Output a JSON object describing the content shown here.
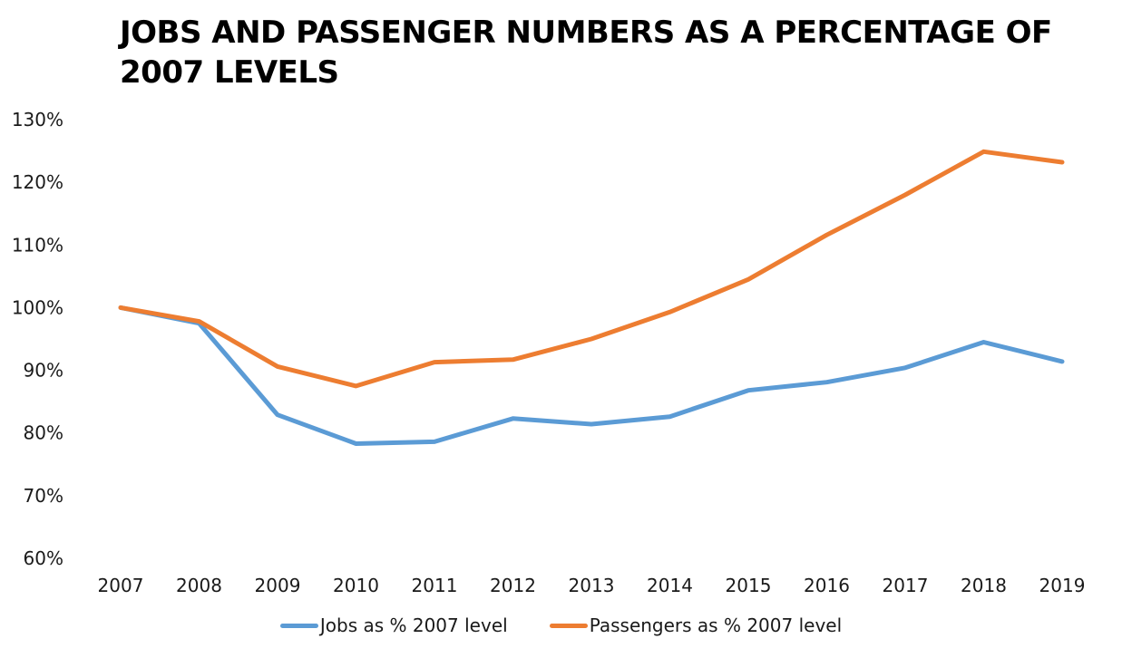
{
  "chart_data": {
    "type": "line",
    "title": "JOBS AND PASSENGER NUMBERS AS A PERCENTAGE OF 2007 LEVELS",
    "xlabel": "",
    "ylabel": "",
    "categories": [
      "2007",
      "2008",
      "2009",
      "2010",
      "2011",
      "2012",
      "2013",
      "2014",
      "2015",
      "2016",
      "2017",
      "2018",
      "2019"
    ],
    "ylim": [
      60,
      130
    ],
    "yticks": [
      60,
      70,
      80,
      90,
      100,
      110,
      120,
      130
    ],
    "ytick_labels": [
      "60%",
      "70%",
      "80%",
      "90%",
      "100%",
      "110%",
      "120%",
      "130%"
    ],
    "grid": false,
    "legend_position": "bottom",
    "series": [
      {
        "name": "Jobs as % 2007 level",
        "color": "#5B9BD5",
        "values": [
          100,
          97.5,
          82.9,
          78.3,
          78.6,
          82.3,
          81.4,
          82.6,
          86.8,
          88.1,
          90.4,
          94.5,
          91.4
        ]
      },
      {
        "name": "Passengers as % 2007 level",
        "color": "#ED7D31",
        "values": [
          100,
          97.8,
          90.6,
          87.5,
          91.3,
          91.7,
          95.0,
          99.3,
          104.5,
          111.6,
          118.0,
          124.9,
          123.2
        ]
      }
    ]
  }
}
